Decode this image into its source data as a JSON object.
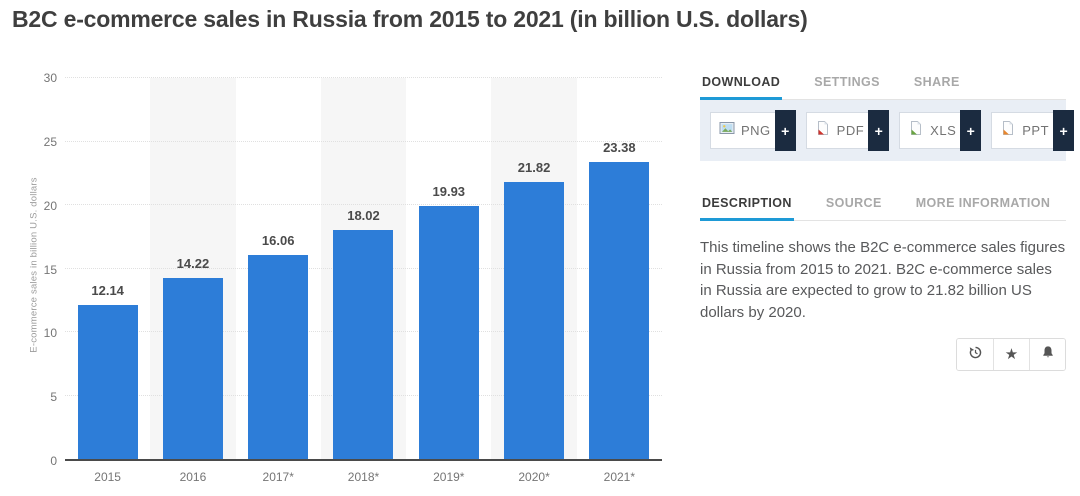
{
  "page_title": "B2C e-commerce sales in Russia from 2015 to 2021 (in billion U.S. dollars)",
  "chart_data": {
    "type": "bar",
    "categories": [
      "2015",
      "2016",
      "2017*",
      "2018*",
      "2019*",
      "2020*",
      "2021*"
    ],
    "values": [
      12.14,
      14.22,
      16.06,
      18.02,
      19.93,
      21.82,
      23.38
    ],
    "value_labels": [
      "12.14",
      "14.22",
      "16.06",
      "18.02",
      "19.93",
      "21.82",
      "23.38"
    ],
    "title": "B2C e-commerce sales in Russia from 2015 to 2021 (in billion U.S. dollars)",
    "xlabel": "",
    "ylabel": "E-commerce sales in billion U.S. dollars",
    "ylim": [
      0,
      30
    ],
    "ytick_step": 5,
    "grid": true,
    "legend": "none",
    "bar_color": "#2d7dd8",
    "band_color": "#f6f6f6"
  },
  "panel": {
    "tabs_top": [
      {
        "label": "DOWNLOAD",
        "active": true
      },
      {
        "label": "SETTINGS",
        "active": false
      },
      {
        "label": "SHARE",
        "active": false
      }
    ],
    "downloads": [
      {
        "label": "PNG"
      },
      {
        "label": "PDF"
      },
      {
        "label": "XLS"
      },
      {
        "label": "PPT"
      }
    ],
    "download_plus": "+",
    "tabs_info": [
      {
        "label": "DESCRIPTION",
        "active": true
      },
      {
        "label": "SOURCE",
        "active": false
      },
      {
        "label": "MORE INFORMATION",
        "active": false
      }
    ],
    "description": "This timeline shows the B2C e-commerce sales figures in Russia from 2015 to 2021. B2C e-commerce sales in Russia are expected to grow to 21.82 billion US dollars by 2020."
  },
  "colors": {
    "bar_blue": "#2d7dd8",
    "tab_underline_blue": "#1e9ad6",
    "plus_navy": "#1b2b40",
    "download_bar_bg": "#e9eef5"
  }
}
